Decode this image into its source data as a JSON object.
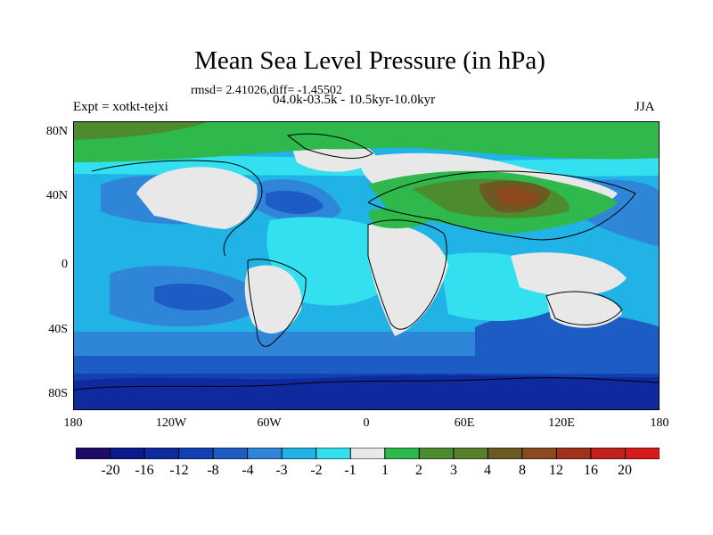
{
  "title": "Mean Sea Level Pressure (in hPa)",
  "stats_line": "rmsd= 2.41026,diff= -1.45502",
  "period_line": "04.0k-03.5k - 10.5kyr-10.0kyr",
  "experiment_label": "Expt = xotkt-tejxi",
  "season": "JJA",
  "y_axis_labels": [
    "80N",
    "40N",
    "0",
    "40S",
    "80S"
  ],
  "x_axis_labels": [
    "180",
    "120W",
    "60W",
    "0",
    "60E",
    "120E",
    "180"
  ],
  "colorbar": {
    "colors": [
      "#1f0a6a",
      "#0b1a8c",
      "#0e2a9e",
      "#1241b3",
      "#1d5cc4",
      "#2f86d9",
      "#21b2e6",
      "#33e0f0",
      "#e8e8e8",
      "#2fb84b",
      "#4c8b2e",
      "#5a7f2a",
      "#6b5a22",
      "#8a4a1c",
      "#a0321a",
      "#c0221a",
      "#d81a1a"
    ],
    "labels": [
      "-20",
      "-16",
      "-12",
      "-8",
      "-4",
      "-3",
      "-2",
      "-1",
      "1",
      "2",
      "3",
      "4",
      "8",
      "12",
      "16",
      "20"
    ]
  },
  "map_colors": {
    "land_gray": "#e8e8e8",
    "light_cyan": "#33e0f0",
    "cyan": "#21b2e6",
    "blue": "#2f86d9",
    "mid_blue": "#1d5cc4",
    "dark_blue": "#1241b3",
    "navy": "#0e2a9e",
    "green": "#2fb84b",
    "olive": "#4c8b2e",
    "brown": "#6b5a22",
    "brown_dark": "#8a4a1c"
  }
}
